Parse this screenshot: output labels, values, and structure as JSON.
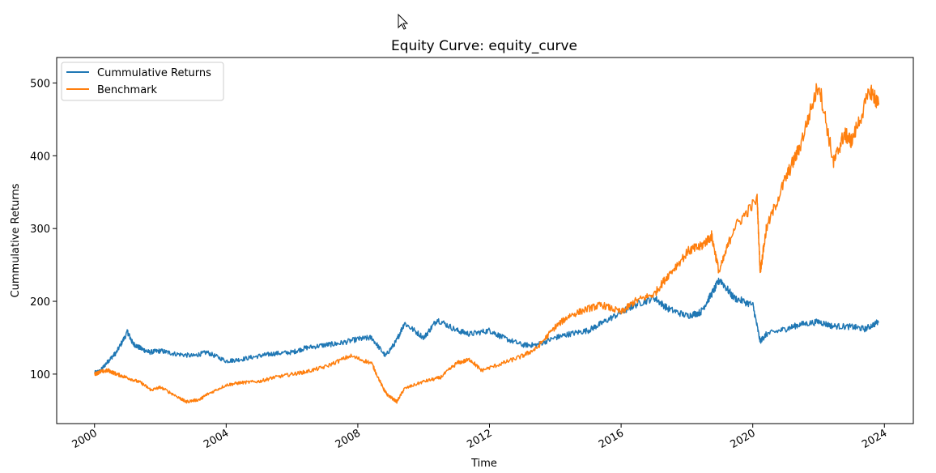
{
  "cursor": {
    "icon": "mouse-pointer-icon"
  },
  "chart_data": {
    "type": "line",
    "title": "Equity Curve: equity_curve",
    "xlabel": "Time",
    "ylabel": "Cummulative Returns",
    "x_ticks": [
      "2000",
      "2004",
      "2008",
      "2012",
      "2016",
      "2020",
      "2024"
    ],
    "y_ticks": [
      100,
      200,
      300,
      400,
      500
    ],
    "xlim": [
      "1998-11-07",
      "2024-11-17"
    ],
    "ylim": [
      32,
      535
    ],
    "grid": false,
    "legend": {
      "placement": "top-left",
      "entries": [
        "Cummulative Returns",
        "Benchmark"
      ]
    },
    "series": [
      {
        "name": "Cummulative Returns",
        "color": "#1f77b4",
        "x": [
          "2000-01-03",
          "2000-03-01",
          "2000-06-01",
          "2000-09-01",
          "2001-01-02",
          "2001-03-01",
          "2001-06-01",
          "2001-09-01",
          "2002-01-02",
          "2002-06-01",
          "2003-01-02",
          "2003-06-01",
          "2004-01-02",
          "2004-06-01",
          "2005-01-03",
          "2005-06-01",
          "2006-01-03",
          "2006-06-01",
          "2007-01-03",
          "2007-06-01",
          "2008-01-02",
          "2008-06-02",
          "2008-11-03",
          "2009-03-02",
          "2009-06-01",
          "2010-01-04",
          "2010-06-01",
          "2011-01-03",
          "2011-06-01",
          "2012-01-03",
          "2012-06-01",
          "2013-01-02",
          "2013-06-03",
          "2014-01-02",
          "2014-06-02",
          "2015-01-02",
          "2015-06-01",
          "2016-01-04",
          "2016-06-01",
          "2017-01-03",
          "2017-06-01",
          "2018-01-02",
          "2018-06-01",
          "2018-10-01",
          "2019-01-02",
          "2019-06-03",
          "2020-01-02",
          "2020-03-23",
          "2020-06-01",
          "2021-01-04",
          "2021-06-01",
          "2022-01-03",
          "2022-06-01",
          "2023-01-03",
          "2023-06-01",
          "2023-10-31"
        ],
        "values": [
          102,
          104,
          118,
          130,
          158,
          142,
          135,
          130,
          132,
          128,
          125,
          130,
          118,
          120,
          125,
          128,
          130,
          136,
          140,
          142,
          148,
          150,
          125,
          145,
          170,
          150,
          175,
          160,
          155,
          160,
          150,
          140,
          140,
          150,
          155,
          160,
          170,
          185,
          195,
          205,
          190,
          180,
          185,
          210,
          230,
          205,
          195,
          145,
          155,
          162,
          168,
          172,
          166,
          165,
          162,
          172
        ]
      },
      {
        "name": "Benchmark",
        "color": "#ff7f0e",
        "x": [
          "2000-01-03",
          "2000-03-01",
          "2000-06-01",
          "2000-09-01",
          "2001-01-02",
          "2001-06-01",
          "2001-09-21",
          "2002-01-02",
          "2002-07-23",
          "2002-10-09",
          "2003-03-11",
          "2003-06-02",
          "2004-01-02",
          "2004-06-01",
          "2005-01-03",
          "2005-06-01",
          "2006-01-03",
          "2006-06-01",
          "2007-01-03",
          "2007-10-09",
          "2008-06-02",
          "2008-10-10",
          "2008-11-20",
          "2009-03-09",
          "2009-06-01",
          "2010-01-04",
          "2010-07-02",
          "2011-01-03",
          "2011-06-01",
          "2011-10-03",
          "2012-06-01",
          "2013-01-02",
          "2013-06-03",
          "2014-01-02",
          "2014-06-02",
          "2015-01-02",
          "2015-06-01",
          "2016-01-04",
          "2016-06-01",
          "2017-01-03",
          "2017-06-01",
          "2018-01-26",
          "2018-06-01",
          "2018-10-01",
          "2018-12-24",
          "2019-06-03",
          "2020-02-19",
          "2020-03-23",
          "2020-06-01",
          "2021-01-04",
          "2021-06-01",
          "2022-01-03",
          "2022-06-16",
          "2022-10-12",
          "2023-01-03",
          "2023-07-31",
          "2023-10-31"
        ],
        "values": [
          100,
          103,
          105,
          100,
          95,
          88,
          78,
          82,
          68,
          62,
          65,
          72,
          85,
          88,
          90,
          95,
          100,
          103,
          110,
          125,
          115,
          80,
          72,
          62,
          80,
          90,
          95,
          115,
          120,
          105,
          115,
          125,
          135,
          165,
          180,
          190,
          195,
          185,
          200,
          210,
          235,
          270,
          275,
          290,
          240,
          300,
          340,
          240,
          300,
          370,
          410,
          500,
          390,
          430,
          420,
          490,
          470
        ]
      }
    ]
  }
}
